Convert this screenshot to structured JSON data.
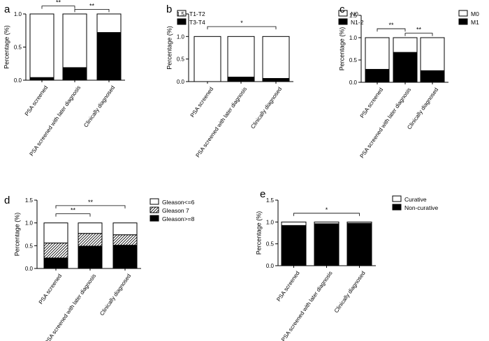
{
  "chart_data": [
    {
      "panel_label": "a",
      "type": "bar",
      "stacked": true,
      "categories": [
        "PSA screened",
        "PSA screened with later diagnosis",
        "Clinically diagnosed"
      ],
      "ylabel": "Percentage (%)",
      "ylim": [
        0,
        1.0
      ],
      "yticks": [
        "0.0",
        "0.5",
        "1.0"
      ],
      "series": [
        {
          "name": "T3-T4",
          "fill": "black",
          "values": [
            0.04,
            0.19,
            0.72
          ]
        },
        {
          "name": "T1-T2",
          "fill": "white",
          "values": [
            0.96,
            0.81,
            0.28
          ]
        }
      ],
      "brackets": [
        {
          "from": 0,
          "to": 1,
          "label": "**"
        },
        {
          "from": 0,
          "to": 2,
          "label": "**"
        },
        {
          "from": 1,
          "to": 2,
          "label": "**"
        }
      ]
    },
    {
      "panel_label": "b",
      "type": "bar",
      "stacked": true,
      "categories": [
        "PSA screened",
        "PSA screened with later diagnosis",
        "Clinically diagnosed"
      ],
      "ylabel": "Percentage (%)",
      "ylim": [
        0,
        1.5
      ],
      "yticks": [
        "0.0",
        "0.5",
        "1.0",
        "1.5"
      ],
      "series": [
        {
          "name": "N1-2",
          "fill": "black",
          "values": [
            0.0,
            0.1,
            0.07
          ]
        },
        {
          "name": "N0",
          "fill": "white",
          "values": [
            1.0,
            0.9,
            0.93
          ]
        }
      ],
      "brackets": [
        {
          "from": 0,
          "to": 2,
          "label": "*"
        }
      ]
    },
    {
      "panel_label": "c",
      "type": "bar",
      "stacked": true,
      "categories": [
        "PSA screened",
        "PSA screened with later diagnosis",
        "Clinically diagnosed"
      ],
      "ylabel": "Percentage (%)",
      "ylim": [
        0,
        1.5
      ],
      "yticks": [
        "0.0",
        "0.5",
        "1.0",
        "1.5"
      ],
      "series": [
        {
          "name": "M1",
          "fill": "black",
          "values": [
            0.29,
            0.67,
            0.26
          ]
        },
        {
          "name": "M0",
          "fill": "white",
          "values": [
            0.71,
            0.33,
            0.74
          ]
        }
      ],
      "brackets": [
        {
          "from": 0,
          "to": 1,
          "label": "**"
        },
        {
          "from": 1,
          "to": 2,
          "label": "**"
        }
      ]
    },
    {
      "panel_label": "d",
      "type": "bar",
      "stacked": true,
      "categories": [
        "PSA screened",
        "PSA screened with later diagnosis",
        "Clinically diagnosed"
      ],
      "ylabel": "Percentage (%)",
      "ylim": [
        0,
        1.5
      ],
      "yticks": [
        "0.0",
        "0.5",
        "1.0",
        "1.5"
      ],
      "series": [
        {
          "name": "Gleason>=8",
          "fill": "black",
          "values": [
            0.23,
            0.49,
            0.51
          ]
        },
        {
          "name": "Gleason 7",
          "fill": "hatch",
          "values": [
            0.33,
            0.28,
            0.23
          ]
        },
        {
          "name": "Gleason<=6",
          "fill": "white",
          "values": [
            0.44,
            0.23,
            0.26
          ]
        }
      ],
      "brackets": [
        {
          "from": 0,
          "to": 1,
          "label": "**"
        },
        {
          "from": 0,
          "to": 2,
          "label": "**"
        }
      ]
    },
    {
      "panel_label": "e",
      "type": "bar",
      "stacked": true,
      "categories": [
        "PSA screened",
        "PSA screened with later diagnosis",
        "Clinically diagnosed"
      ],
      "ylabel": "Percentage (%)",
      "ylim": [
        0,
        1.5
      ],
      "yticks": [
        "0.0",
        "0.5",
        "1.0",
        "1.5"
      ],
      "series": [
        {
          "name": "Non-curative",
          "fill": "black",
          "values": [
            0.92,
            0.96,
            0.97
          ]
        },
        {
          "name": "Curative",
          "fill": "white",
          "values": [
            0.08,
            0.04,
            0.03
          ]
        }
      ],
      "brackets": [
        {
          "from": 0,
          "to": 2,
          "label": "*"
        }
      ]
    }
  ]
}
